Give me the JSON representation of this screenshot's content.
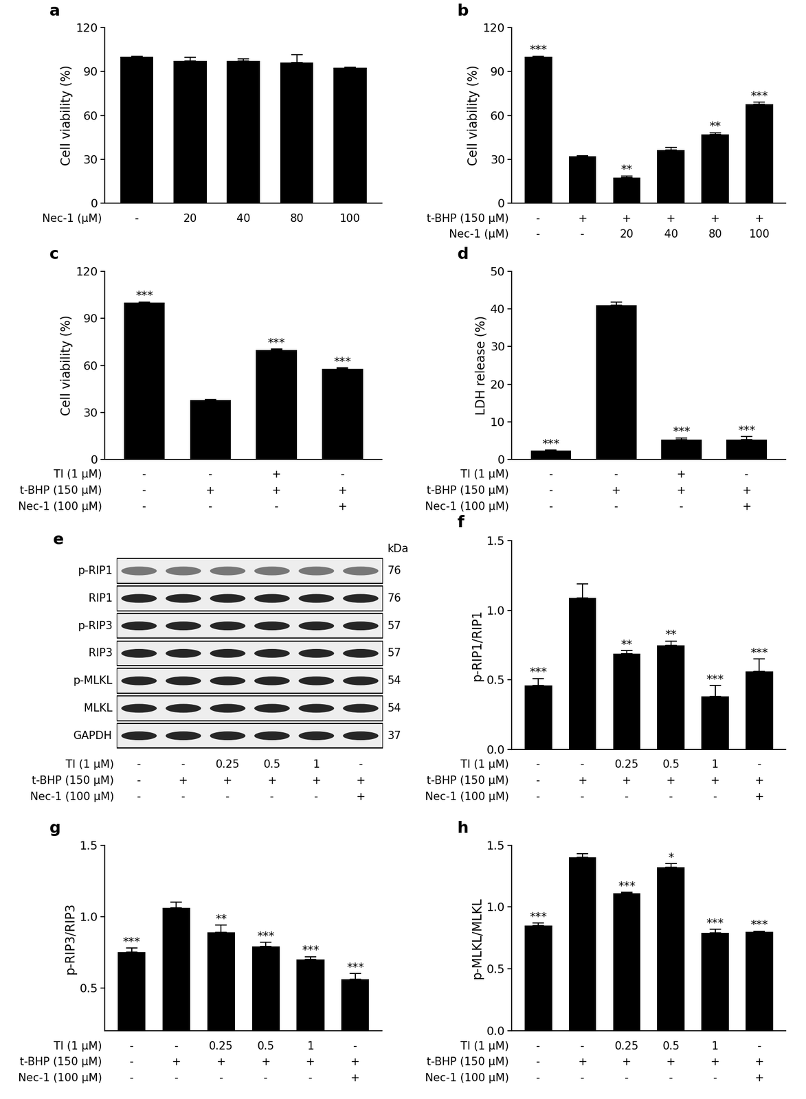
{
  "chart_data": [
    {
      "type": "bar",
      "title": "a",
      "y_label": "Cell viability (%)",
      "color": "#000000",
      "values": [
        100,
        97,
        97,
        96,
        92.5
      ],
      "errors": [
        0.5,
        2.5,
        1.5,
        5.5,
        0.3
      ],
      "annotations": [
        null,
        null,
        null,
        null,
        null
      ],
      "ylim": [
        0,
        120
      ],
      "yticks": [
        0,
        30,
        60,
        90,
        120
      ],
      "conditions": [
        {
          "label": "Nec-1 (μM)",
          "values": [
            "-",
            "20",
            "40",
            "80",
            "100"
          ]
        }
      ]
    },
    {
      "type": "bar",
      "title": "b",
      "y_label": "Cell viability (%)",
      "color": "#000000",
      "values": [
        100,
        32,
        17.5,
        36.5,
        47,
        67.5
      ],
      "errors": [
        0.5,
        0.3,
        1.2,
        1.5,
        1.2,
        1.5
      ],
      "annotations": [
        "***",
        null,
        "**",
        null,
        "**",
        "***"
      ],
      "ylim": [
        0,
        120
      ],
      "yticks": [
        0,
        30,
        60,
        90,
        120
      ],
      "conditions": [
        {
          "label": "t-BHP (150 μM)",
          "values": [
            "-",
            "+",
            "+",
            "+",
            "+",
            "+"
          ]
        },
        {
          "label": "Nec-1 (μM)",
          "values": [
            "-",
            "-",
            "20",
            "40",
            "80",
            "100"
          ]
        }
      ]
    },
    {
      "type": "bar",
      "title": "c",
      "y_label": "Cell viability (%)",
      "color": "#000000",
      "values": [
        100,
        38,
        70,
        58
      ],
      "errors": [
        0.5,
        0.2,
        0.5,
        0.5
      ],
      "annotations": [
        "***",
        null,
        "***",
        "***"
      ],
      "ylim": [
        0,
        120
      ],
      "yticks": [
        0,
        30,
        60,
        90,
        120
      ],
      "conditions": [
        {
          "label": "TI (1 μM)",
          "values": [
            "-",
            "-",
            "+",
            "-"
          ]
        },
        {
          "label": "t-BHP (150 μM)",
          "values": [
            "-",
            "+",
            "+",
            "+"
          ]
        },
        {
          "label": "Nec-1 (100 μM)",
          "values": [
            "-",
            "-",
            "-",
            "+"
          ]
        }
      ]
    },
    {
      "type": "bar",
      "title": "d",
      "y_label": "LDH release (%)",
      "color": "#000000",
      "values": [
        2.3,
        41,
        5.3,
        5.2
      ],
      "errors": [
        0.2,
        0.8,
        0.4,
        0.9
      ],
      "annotations": [
        "***",
        null,
        "***",
        "***"
      ],
      "ylim": [
        0,
        50
      ],
      "yticks": [
        0,
        10,
        20,
        30,
        40,
        50
      ],
      "conditions": [
        {
          "label": "TI (1 μM)",
          "values": [
            "-",
            "-",
            "+",
            "-"
          ]
        },
        {
          "label": "t-BHP (150 μM)",
          "values": [
            "-",
            "+",
            "+",
            "+"
          ]
        },
        {
          "label": "Nec-1 (100 μM)",
          "values": [
            "-",
            "-",
            "-",
            "+"
          ]
        }
      ]
    },
    {
      "type": "bar",
      "title": "f",
      "y_label": "p-RIP1/RIP1",
      "color": "#000000",
      "values": [
        0.46,
        1.09,
        0.69,
        0.75,
        0.38,
        0.56
      ],
      "errors": [
        0.05,
        0.1,
        0.02,
        0.03,
        0.08,
        0.09
      ],
      "annotations": [
        "***",
        null,
        "**",
        "**",
        "***",
        "***"
      ],
      "ylim": [
        0,
        1.5
      ],
      "yticks": [
        {
          "value": 0,
          "label": "0.0"
        },
        0.5,
        {
          "value": 1,
          "label": "1.0"
        },
        1.5
      ],
      "conditions": [
        {
          "label": "TI (1 μM)",
          "values": [
            "-",
            "-",
            "0.25",
            "0.5",
            "1",
            "-"
          ]
        },
        {
          "label": "t-BHP (150 μM)",
          "values": [
            "-",
            "+",
            "+",
            "+",
            "+",
            "+"
          ]
        },
        {
          "label": "Nec-1 (100 μM)",
          "values": [
            "-",
            "-",
            "-",
            "-",
            "-",
            "+"
          ]
        }
      ]
    },
    {
      "type": "bar",
      "title": "g",
      "y_label": "p-RIP3/RIP3",
      "color": "#000000",
      "values": [
        0.75,
        1.06,
        0.89,
        0.79,
        0.7,
        0.56
      ],
      "errors": [
        0.03,
        0.04,
        0.05,
        0.03,
        0.02,
        0.04
      ],
      "annotations": [
        "***",
        null,
        "**",
        "***",
        "***",
        "***"
      ],
      "ylim": [
        0.2,
        1.5
      ],
      "yticks": [
        0.5,
        {
          "value": 1,
          "label": "1.0"
        },
        1.5
      ],
      "conditions": [
        {
          "label": "TI (1 μM)",
          "values": [
            "-",
            "-",
            "0.25",
            "0.5",
            "1",
            "-"
          ]
        },
        {
          "label": "t-BHP (150 μM)",
          "values": [
            "-",
            "+",
            "+",
            "+",
            "+",
            "+"
          ]
        },
        {
          "label": "Nec-1 (100 μM)",
          "values": [
            "-",
            "-",
            "-",
            "-",
            "-",
            "+"
          ]
        }
      ]
    },
    {
      "type": "bar",
      "title": "h",
      "y_label": "p-MLKL/MLKL",
      "color": "#000000",
      "values": [
        0.85,
        1.4,
        1.11,
        1.32,
        0.79,
        0.8
      ],
      "errors": [
        0.02,
        0.03,
        0.01,
        0.03,
        0.03,
        0.005
      ],
      "annotations": [
        "***",
        null,
        "***",
        "*",
        "***",
        "***"
      ],
      "ylim": [
        0,
        1.5
      ],
      "yticks": [
        {
          "value": 0,
          "label": "0.0"
        },
        0.5,
        {
          "value": 1,
          "label": "1.0"
        },
        1.5
      ],
      "conditions": [
        {
          "label": "TI (1 μM)",
          "values": [
            "-",
            "-",
            "0.25",
            "0.5",
            "1",
            "-"
          ]
        },
        {
          "label": "t-BHP (150 μM)",
          "values": [
            "-",
            "+",
            "+",
            "+",
            "+",
            "+"
          ]
        },
        {
          "label": "Nec-1 (100 μM)",
          "values": [
            "-",
            "-",
            "-",
            "-",
            "-",
            "+"
          ]
        }
      ]
    }
  ],
  "blot": {
    "title": "e",
    "unit_header": "kDa",
    "rows": [
      {
        "label": "p-RIP1",
        "kda": 76
      },
      {
        "label": "RIP1",
        "kda": 76
      },
      {
        "label": "p-RIP3",
        "kda": 57
      },
      {
        "label": "RIP3",
        "kda": 57
      },
      {
        "label": "p-MLKL",
        "kda": 54
      },
      {
        "label": "MLKL",
        "kda": 54
      },
      {
        "label": "GAPDH",
        "kda": 37
      }
    ],
    "conditions": [
      {
        "label": "TI (1 μM)",
        "values": [
          "-",
          "-",
          "0.25",
          "0.5",
          "1",
          "-"
        ]
      },
      {
        "label": "t-BHP (150 μM)",
        "values": [
          "-",
          "+",
          "+",
          "+",
          "+",
          "+"
        ]
      },
      {
        "label": "Nec-1 (100 μM)",
        "values": [
          "-",
          "-",
          "-",
          "-",
          "-",
          "+"
        ]
      }
    ]
  }
}
